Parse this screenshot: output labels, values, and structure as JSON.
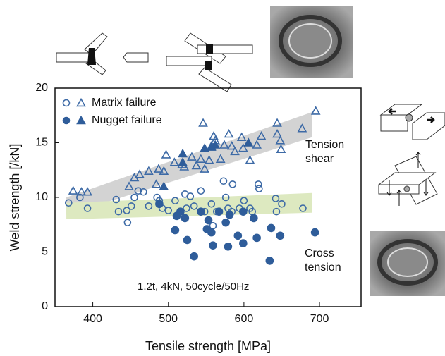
{
  "chart_data": {
    "type": "scatter",
    "x_label": "Tensile strength [MPa]",
    "y_label": "Weld strength [/kN]",
    "xlim": [
      350,
      755
    ],
    "xticks": [
      400,
      500,
      600,
      700
    ],
    "ylim": [
      0,
      20
    ],
    "yticks": [
      0,
      5,
      10,
      15,
      20
    ],
    "annotation": "1.2t, 4kN, 50cycle/50Hz",
    "legend": "upper left",
    "series": [
      {
        "name": "Matrix failure",
        "color": "#3d6aa6",
        "filled": false,
        "circle": {
          "x": [
            368,
            383,
            393,
            431,
            434,
            445,
            451,
            455,
            460,
            446,
            467,
            474,
            485,
            488,
            492,
            500,
            509,
            522,
            524,
            529,
            543,
            548,
            557,
            564,
            573,
            576,
            579,
            584,
            594,
            600,
            608,
            619,
            620,
            611,
            642,
            650,
            643,
            678,
            559,
            534,
            585
          ],
          "y": [
            9.5,
            10,
            9,
            9.8,
            8.7,
            8.8,
            9.2,
            10,
            10.6,
            7.7,
            10.5,
            9.2,
            10,
            9.7,
            9,
            8.8,
            9.7,
            10.3,
            9,
            10.1,
            10.6,
            8.7,
            9.4,
            8.7,
            11.5,
            10,
            9,
            8.7,
            9,
            9.7,
            9,
            11.2,
            10.8,
            8.7,
            9.9,
            9.4,
            8.7,
            9,
            7.4,
            9.2,
            11.2
          ]
        },
        "triangle": {
          "x": [
            374,
            385,
            393,
            448,
            462,
            474,
            487,
            494,
            484,
            455,
            497,
            508,
            521,
            531,
            537,
            543,
            548,
            554,
            557,
            560,
            569,
            574,
            580,
            588,
            597,
            599,
            608,
            617,
            623,
            644,
            644,
            649,
            648,
            677,
            695,
            546,
            518,
            562,
            584
          ],
          "y": [
            10.6,
            10.5,
            10.5,
            11,
            12.1,
            12.4,
            12.6,
            12.4,
            11.2,
            11.8,
            13.9,
            13.2,
            12.8,
            13.7,
            12.9,
            13.5,
            12.6,
            13.4,
            14.7,
            15.6,
            13.5,
            14.8,
            15.8,
            14.2,
            15.5,
            14.5,
            13.4,
            14.8,
            15.6,
            15.8,
            16.8,
            14.4,
            15.2,
            16.3,
            17.9,
            16.8,
            13,
            15.2,
            14.7
          ]
        }
      },
      {
        "name": "Nugget failure",
        "color": "#2f5d9a",
        "filled": true,
        "circle": {
          "x": [
            488,
            511,
            516,
            522,
            509,
            525,
            534,
            551,
            553,
            557,
            559,
            567,
            576,
            579,
            581,
            592,
            599,
            613,
            617,
            636,
            634,
            648,
            694,
            543,
            599
          ],
          "y": [
            9.4,
            8.3,
            8.7,
            8.1,
            7,
            6.1,
            4.6,
            7.1,
            7.9,
            6.8,
            5.6,
            8.7,
            7.7,
            5.5,
            8.4,
            6.5,
            5.8,
            8.1,
            6.3,
            7.2,
            4.2,
            6.5,
            6.8,
            8.7,
            8.7
          ]
        },
        "triangle": {
          "x": [
            519,
            519,
            494,
            548,
            562,
            557,
            606
          ],
          "y": [
            14,
            13.2,
            11,
            14.5,
            14.8,
            14.6,
            15
          ]
        }
      }
    ],
    "bands": [
      {
        "label": [
          "Tension",
          "shear"
        ],
        "color": "#d3d3d3",
        "x": [
          365,
          690
        ],
        "lower": [
          8.4,
          15.5
        ],
        "upper": [
          10,
          17.8
        ]
      },
      {
        "label": [
          "Cross",
          "tension"
        ],
        "color": "#dde9c0",
        "x": [
          365,
          690
        ],
        "lower": [
          8,
          8.6
        ],
        "upper": [
          9.5,
          10.4
        ]
      }
    ]
  }
}
